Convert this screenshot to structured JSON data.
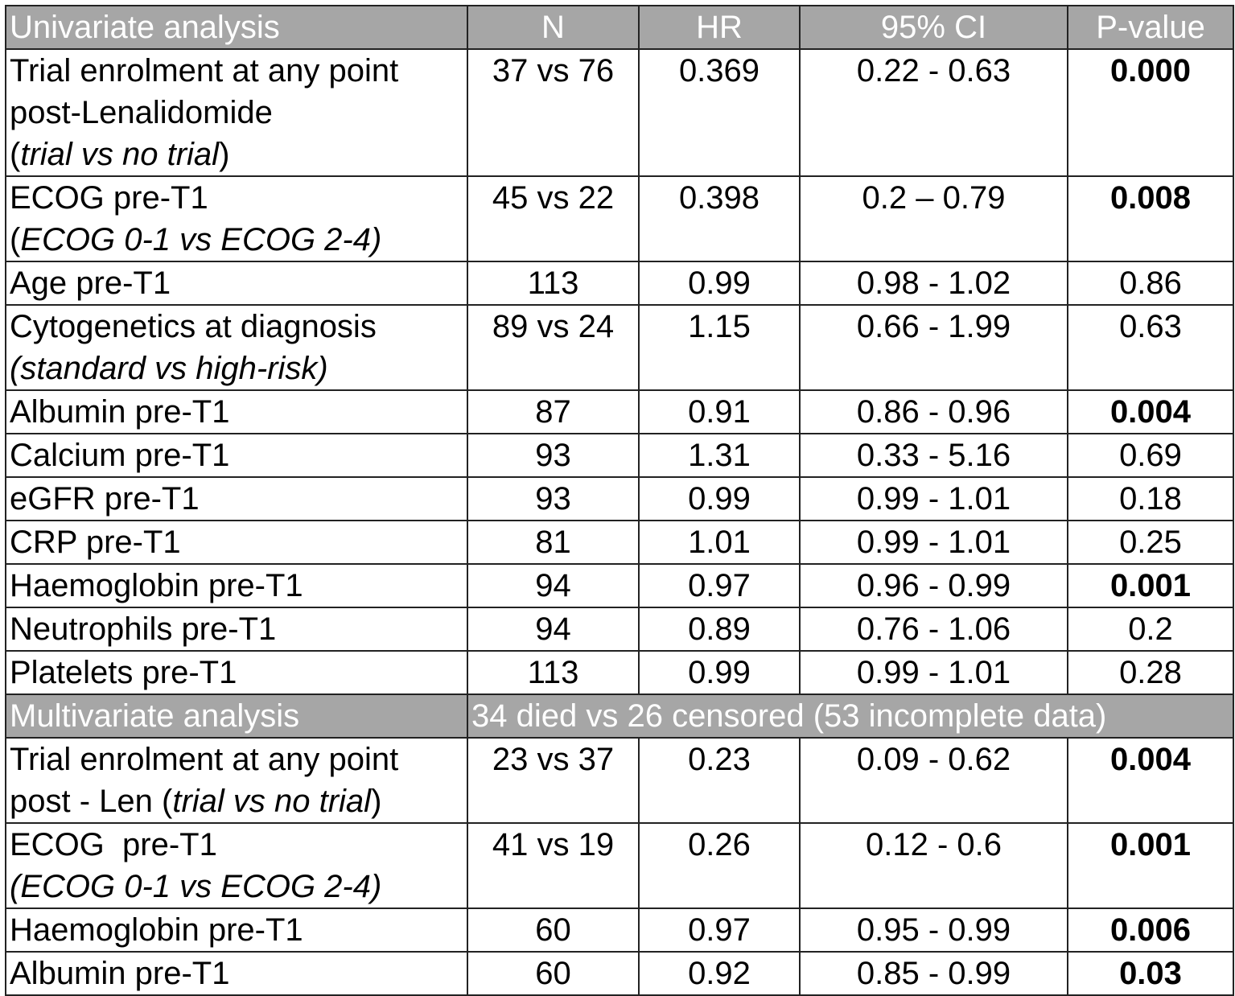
{
  "header": {
    "section": "Univariate analysis",
    "cols": [
      "N",
      "HR",
      "95% CI",
      "P-value"
    ]
  },
  "univariate": [
    {
      "label": [
        "Trial enrolment at any point",
        "post-Lenalidomide",
        "(trial vs no trial)"
      ],
      "n": "37 vs 76",
      "hr": "0.369",
      "ci": "0.22 - 0.63",
      "p": "0.000",
      "sig": true
    },
    {
      "label": [
        "ECOG pre-T1",
        "(ECOG 0-1 vs ECOG 2-4)"
      ],
      "n": "45 vs 22",
      "hr": "0.398",
      "ci": "0.2 – 0.79",
      "p": "0.008",
      "sig": true
    },
    {
      "label": [
        "Age pre-T1"
      ],
      "n": "113",
      "hr": "0.99",
      "ci": "0.98 - 1.02",
      "p": "0.86",
      "sig": false
    },
    {
      "label": [
        "Cytogenetics at diagnosis",
        "(standard vs high-risk)"
      ],
      "n": "89 vs 24",
      "hr": "1.15",
      "ci": "0.66 - 1.99",
      "p": "0.63",
      "sig": false
    },
    {
      "label": [
        "Albumin pre-T1"
      ],
      "n": "87",
      "hr": "0.91",
      "ci": "0.86 - 0.96",
      "p": "0.004",
      "sig": true
    },
    {
      "label": [
        "Calcium pre-T1"
      ],
      "n": "93",
      "hr": "1.31",
      "ci": "0.33 - 5.16",
      "p": "0.69",
      "sig": false
    },
    {
      "label": [
        "eGFR pre-T1"
      ],
      "n": "93",
      "hr": "0.99",
      "ci": "0.99 - 1.01",
      "p": "0.18",
      "sig": false
    },
    {
      "label": [
        "CRP pre-T1"
      ],
      "n": "81",
      "hr": "1.01",
      "ci": "0.99 - 1.01",
      "p": "0.25",
      "sig": false
    },
    {
      "label": [
        "Haemoglobin pre-T1"
      ],
      "n": "94",
      "hr": "0.97",
      "ci": "0.96 - 0.99",
      "p": "0.001",
      "sig": true
    },
    {
      "label": [
        "Neutrophils pre-T1"
      ],
      "n": "94",
      "hr": "0.89",
      "ci": "0.76 - 1.06",
      "p": "0.2",
      "sig": false
    },
    {
      "label": [
        "Platelets pre-T1"
      ],
      "n": "113",
      "hr": "0.99",
      "ci": "0.99 - 1.01",
      "p": "0.28",
      "sig": false
    }
  ],
  "multi_header": {
    "section": "Multivariate analysis",
    "note": "34 died vs 26 censored (53 incomplete data)"
  },
  "multivariate": [
    {
      "label": [
        "Trial enrolment at any point",
        "post - Len (trial vs no trial)"
      ],
      "n": "23 vs 37",
      "hr": "0.23",
      "ci": "0.09 - 0.62",
      "p": "0.004",
      "sig": true
    },
    {
      "label": [
        "ECOG  pre-T1",
        "(ECOG 0-1 vs ECOG 2-4)"
      ],
      "n": "41 vs 19",
      "hr": "0.26",
      "ci": "0.12 - 0.6",
      "p": "0.001",
      "sig": true
    },
    {
      "label": [
        "Haemoglobin pre-T1"
      ],
      "n": "60",
      "hr": "0.97",
      "ci": "0.95 - 0.99",
      "p": "0.006",
      "sig": true
    },
    {
      "label": [
        "Albumin pre-T1"
      ],
      "n": "60",
      "hr": "0.92",
      "ci": "0.85 - 0.99",
      "p": "0.03",
      "sig": true
    }
  ]
}
